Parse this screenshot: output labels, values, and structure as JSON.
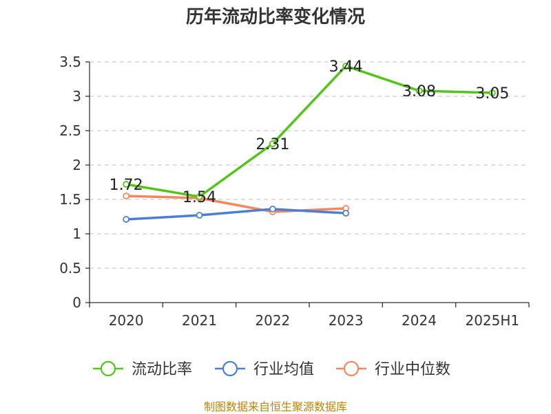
{
  "title": "历年流动比率变化情况",
  "source": "制图数据来自恒生聚源数据库",
  "chart_data": {
    "type": "line",
    "categories": [
      "2020",
      "2021",
      "2022",
      "2023",
      "2024",
      "2025H1"
    ],
    "ylim": [
      0,
      3.5
    ],
    "yticks": [
      "0",
      "0.5",
      "1",
      "1.5",
      "2",
      "2.5",
      "3",
      "3.5"
    ],
    "grid": true,
    "legend_position": "bottom",
    "series": [
      {
        "name": "流动比率",
        "color": "#52c41a",
        "values": [
          1.72,
          1.54,
          2.31,
          3.44,
          3.08,
          3.05
        ],
        "labels": [
          "1.72",
          "1.54",
          "2.31",
          "3.44",
          "3.08",
          "3.05"
        ]
      },
      {
        "name": "行业均值",
        "color": "#4a7fd6",
        "values": [
          1.21,
          1.27,
          1.36,
          1.3,
          null,
          null
        ]
      },
      {
        "name": "行业中位数",
        "color": "#f5885a",
        "values": [
          1.55,
          1.52,
          1.32,
          1.37,
          null,
          null
        ]
      }
    ]
  }
}
